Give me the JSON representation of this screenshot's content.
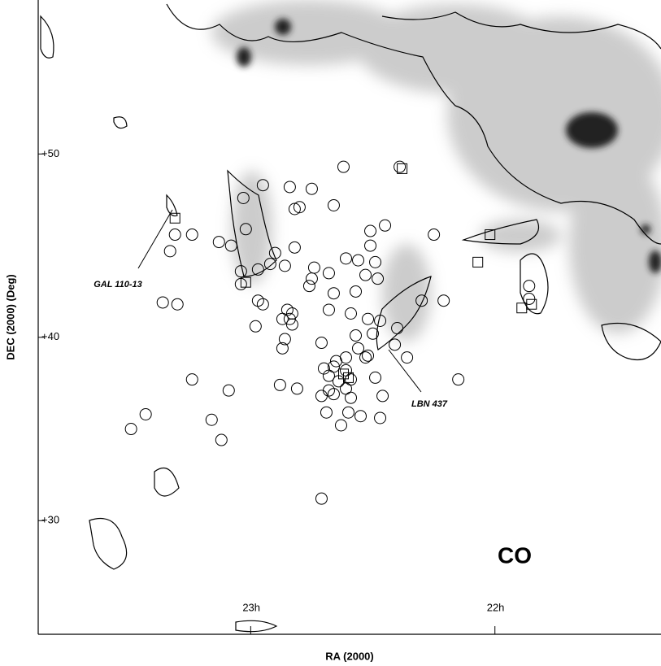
{
  "chart_data": {
    "type": "scatter",
    "x_label": "RA (2000)",
    "y_label": "DEC (2000)  (Deg)",
    "annotations": [
      "GAL 110-13",
      "LBN 437",
      "CO"
    ],
    "xlim": [
      23.87,
      21.32
    ],
    "ylim": [
      23.8,
      58.4
    ],
    "xticks": [
      {
        "value": 23,
        "label": "23h"
      },
      {
        "value": 22,
        "label": "22h"
      }
    ],
    "yticks": [
      {
        "value": 30,
        "label": "+30"
      },
      {
        "value": 40,
        "label": "+40"
      },
      {
        "value": 50,
        "label": "+50"
      }
    ],
    "series": [
      {
        "marker": "circle",
        "color": "#000000",
        "x": [
          22.62,
          22.39,
          23.03,
          22.95,
          22.84,
          22.75,
          22.66,
          22.82,
          22.8,
          22.45,
          22.51,
          22.25,
          23.31,
          23.24,
          23.13,
          23.08,
          23.02,
          22.9,
          22.51,
          23.33,
          22.82,
          22.61,
          22.92,
          23.04,
          22.97,
          22.86,
          22.74,
          22.56,
          22.49,
          22.75,
          22.68,
          22.53,
          22.48,
          23.04,
          22.76,
          22.66,
          22.57,
          22.21,
          22.3,
          23.36,
          23.3,
          22.97,
          22.95,
          22.85,
          22.83,
          22.68,
          22.59,
          22.52,
          22.47,
          22.87,
          22.84,
          22.83,
          22.98,
          22.5,
          22.4,
          22.86,
          22.87,
          22.57,
          22.41,
          22.71,
          22.56,
          22.61,
          22.53,
          22.52,
          22.36,
          22.65,
          22.66,
          22.7,
          22.61,
          22.49,
          22.59,
          22.68,
          22.64,
          22.15,
          23.24,
          23.09,
          22.88,
          22.81,
          22.68,
          22.71,
          22.66,
          22.46,
          22.61,
          22.59,
          22.69,
          22.6,
          22.55,
          22.47,
          22.63,
          23.43,
          23.49,
          23.16,
          23.12,
          22.71,
          21.86,
          21.86
        ],
        "values": [
          49.3,
          49.3,
          47.6,
          48.3,
          48.2,
          48.1,
          47.2,
          47.0,
          47.1,
          46.1,
          45.8,
          45.6,
          45.6,
          45.6,
          45.2,
          45.0,
          45.9,
          44.6,
          45.0,
          44.7,
          44.9,
          44.3,
          44.0,
          43.6,
          43.7,
          43.9,
          43.8,
          44.2,
          44.1,
          43.2,
          43.5,
          43.4,
          43.2,
          42.9,
          42.8,
          42.4,
          42.5,
          42.0,
          42.0,
          41.9,
          41.8,
          42.0,
          41.8,
          41.5,
          41.3,
          41.5,
          41.3,
          41.0,
          40.9,
          41.0,
          41.0,
          40.7,
          40.6,
          40.2,
          40.5,
          39.9,
          39.4,
          40.1,
          39.6,
          39.7,
          39.4,
          38.9,
          38.9,
          39.0,
          38.9,
          38.7,
          38.4,
          38.3,
          38.2,
          37.8,
          37.7,
          37.9,
          37.6,
          37.7,
          37.7,
          37.1,
          37.4,
          37.2,
          37.1,
          36.8,
          36.9,
          36.8,
          37.2,
          36.7,
          35.9,
          35.9,
          35.7,
          35.6,
          35.2,
          35.8,
          35.0,
          35.5,
          34.4,
          31.2,
          42.8,
          42.1
        ]
      },
      {
        "marker": "square",
        "color": "#000000",
        "x": [
          23.31,
          22.38,
          22.02,
          22.07,
          23.02,
          21.89,
          21.85,
          22.62,
          22.6
        ],
        "values": [
          46.5,
          49.2,
          45.6,
          44.1,
          43.0,
          41.6,
          41.8,
          38.0,
          37.8
        ]
      }
    ]
  }
}
